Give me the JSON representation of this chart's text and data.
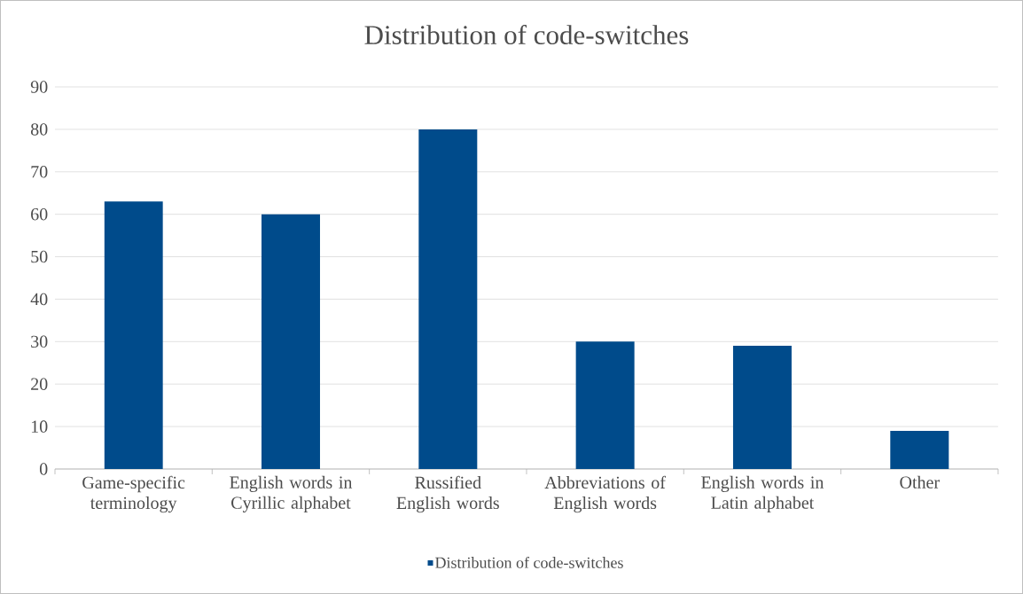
{
  "chart_data": {
    "type": "bar",
    "title": "Distribution of code-switches",
    "categories": [
      "Game-specific terminology",
      "English words in Cyrillic alphabet",
      "Russified English words",
      "Abbreviations of English words",
      "English words in Latin alphabet",
      "Other"
    ],
    "series": [
      {
        "name": "Distribution of code-switches",
        "color": "#004b8b",
        "values": [
          63,
          60,
          80,
          30,
          29,
          9
        ]
      }
    ],
    "ylim": [
      0,
      90
    ],
    "yticks": [
      0,
      10,
      20,
      30,
      40,
      50,
      60,
      70,
      80,
      90
    ],
    "grid": "y",
    "legend": "bottom"
  }
}
